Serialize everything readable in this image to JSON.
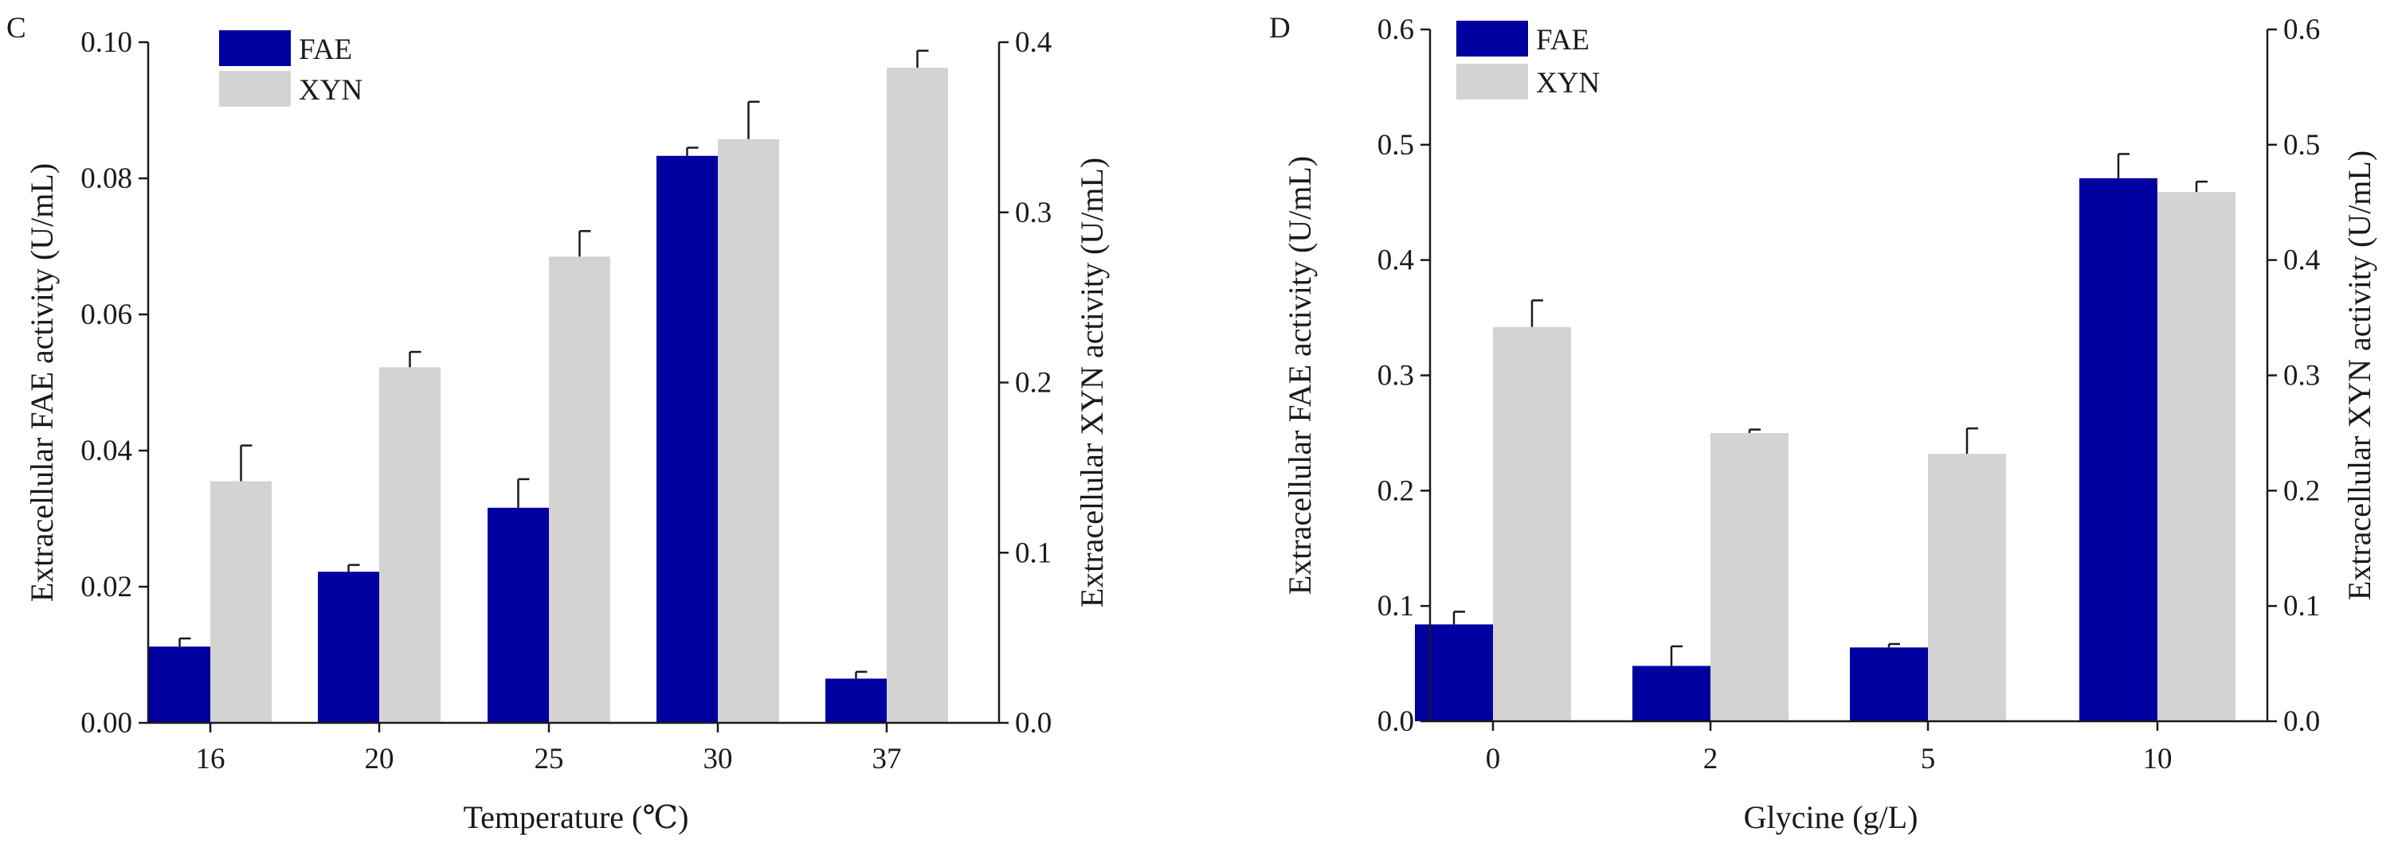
{
  "colors": {
    "fae": "#0000a0",
    "xyn": "#d3d3d3",
    "axis": "#1a1a1a"
  },
  "chart_data": [
    {
      "type": "bar",
      "panel_label": "C",
      "title": "",
      "xlabel": "Temperature (℃)",
      "ylabel": "Extracellular FAE activity (U/mL)",
      "ylabel_right": "Extracellular XYN activity (U/mL)",
      "categories": [
        "16",
        "20",
        "25",
        "30",
        "37"
      ],
      "legend": [
        "FAE",
        "XYN"
      ],
      "legend_position": "top-left",
      "ylim": [
        0,
        0.1
      ],
      "y_ticks": [
        "0.00",
        "0.02",
        "0.04",
        "0.06",
        "0.08",
        "0.10"
      ],
      "ylim_right": [
        0,
        0.4
      ],
      "y_ticks_right": [
        "0.0",
        "0.1",
        "0.2",
        "0.3",
        "0.4"
      ],
      "series": [
        {
          "name": "FAE",
          "axis": "left",
          "values": [
            0.0112,
            0.0222,
            0.0316,
            0.0833,
            0.0065
          ],
          "errors": [
            0.0012,
            0.001,
            0.0042,
            0.0012,
            0.001
          ]
        },
        {
          "name": "XYN",
          "axis": "right",
          "values": [
            0.142,
            0.209,
            0.274,
            0.343,
            0.385
          ],
          "errors": [
            0.021,
            0.009,
            0.015,
            0.022,
            0.01
          ]
        }
      ]
    },
    {
      "type": "bar",
      "panel_label": "D",
      "title": "",
      "xlabel": "Glycine (g/L)",
      "ylabel": "Extracellular FAE activity (U/mL)",
      "ylabel_right": "Extracellular XYN activity (U/mL)",
      "categories": [
        "0",
        "2",
        "5",
        "10"
      ],
      "legend": [
        "FAE",
        "XYN"
      ],
      "legend_position": "top-left",
      "ylim": [
        0,
        0.6
      ],
      "y_ticks": [
        "0.0",
        "0.1",
        "0.2",
        "0.3",
        "0.4",
        "0.5",
        "0.6"
      ],
      "ylim_right": [
        0,
        0.6
      ],
      "y_ticks_right": [
        "0.0",
        "0.1",
        "0.2",
        "0.3",
        "0.4",
        "0.5",
        "0.6"
      ],
      "series": [
        {
          "name": "FAE",
          "axis": "left",
          "values": [
            0.084,
            0.048,
            0.064,
            0.471
          ],
          "errors": [
            0.011,
            0.017,
            0.003,
            0.021
          ]
        },
        {
          "name": "XYN",
          "axis": "right",
          "values": [
            0.342,
            0.25,
            0.232,
            0.459
          ],
          "errors": [
            0.023,
            0.003,
            0.022,
            0.009
          ]
        }
      ]
    }
  ]
}
